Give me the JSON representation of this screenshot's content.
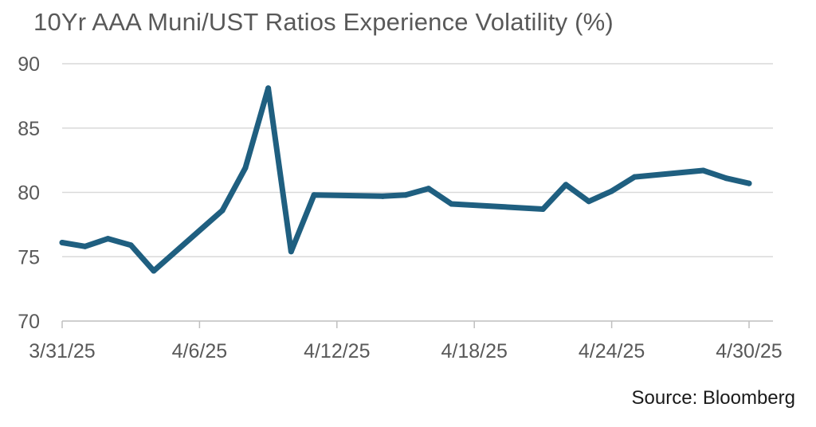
{
  "chart_data": {
    "type": "line",
    "title": "10Yr AAA Muni/UST Ratios Experience Volatility (%)",
    "source": "Source: Bloomberg",
    "xlabel": "",
    "ylabel": "",
    "ylim": [
      70,
      90
    ],
    "yticks": [
      70,
      75,
      80,
      85,
      90
    ],
    "xlim": [
      "2025-03-31",
      "2025-04-30"
    ],
    "xticks": [
      {
        "date": "2025-03-31",
        "label": "3/31/25"
      },
      {
        "date": "2025-04-06",
        "label": "4/6/25"
      },
      {
        "date": "2025-04-12",
        "label": "4/12/25"
      },
      {
        "date": "2025-04-18",
        "label": "4/18/25"
      },
      {
        "date": "2025-04-24",
        "label": "4/24/25"
      },
      {
        "date": "2025-04-30",
        "label": "4/30/25"
      }
    ],
    "grid": true,
    "legend": "none",
    "series": [
      {
        "color": "#1f5f80",
        "points": [
          {
            "x": "2025-03-31",
            "y": 76.1
          },
          {
            "x": "2025-04-01",
            "y": 75.8
          },
          {
            "x": "2025-04-02",
            "y": 76.4
          },
          {
            "x": "2025-04-03",
            "y": 75.9
          },
          {
            "x": "2025-04-04",
            "y": 73.9
          },
          {
            "x": "2025-04-07",
            "y": 78.6
          },
          {
            "x": "2025-04-08",
            "y": 81.9
          },
          {
            "x": "2025-04-09",
            "y": 88.1
          },
          {
            "x": "2025-04-10",
            "y": 75.4
          },
          {
            "x": "2025-04-11",
            "y": 79.8
          },
          {
            "x": "2025-04-14",
            "y": 79.7
          },
          {
            "x": "2025-04-15",
            "y": 79.8
          },
          {
            "x": "2025-04-16",
            "y": 80.3
          },
          {
            "x": "2025-04-17",
            "y": 79.1
          },
          {
            "x": "2025-04-21",
            "y": 78.7
          },
          {
            "x": "2025-04-22",
            "y": 80.6
          },
          {
            "x": "2025-04-23",
            "y": 79.3
          },
          {
            "x": "2025-04-24",
            "y": 80.1
          },
          {
            "x": "2025-04-25",
            "y": 81.2
          },
          {
            "x": "2025-04-28",
            "y": 81.7
          },
          {
            "x": "2025-04-29",
            "y": 81.1
          },
          {
            "x": "2025-04-30",
            "y": 80.7
          }
        ]
      }
    ]
  }
}
